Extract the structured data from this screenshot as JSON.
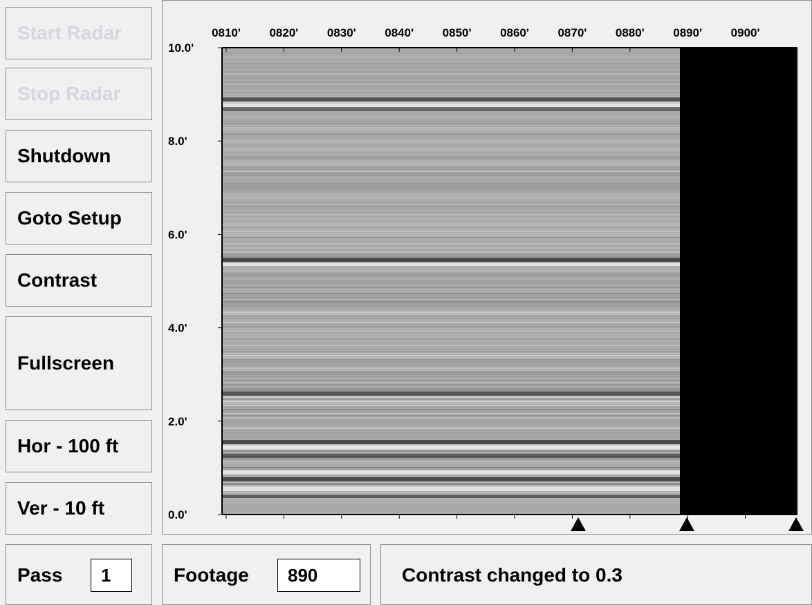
{
  "buttons": [
    {
      "label": "Start Radar",
      "enabled": false
    },
    {
      "label": "Stop Radar",
      "enabled": false
    },
    {
      "label": "Shutdown",
      "enabled": true
    },
    {
      "label": "Goto Setup",
      "enabled": true
    },
    {
      "label": "Contrast",
      "enabled": true
    },
    {
      "label": "Fullscreen",
      "enabled": true
    },
    {
      "label": "Hor - 100 ft",
      "enabled": true
    },
    {
      "label": "Ver - 10 ft",
      "enabled": true
    }
  ],
  "radar": {
    "x_labels": [
      "0810'",
      "0820'",
      "0830'",
      "0840'",
      "0850'",
      "0860'",
      "0870'",
      "0880'",
      "0890'",
      "0900'"
    ],
    "y_labels": [
      "10.0'",
      "8.0'",
      "6.0'",
      "4.0'",
      "2.0'",
      "0.0'"
    ]
  },
  "pass": {
    "label": "Pass",
    "value": "1"
  },
  "footage": {
    "label": "Footage",
    "value": "890"
  },
  "status": {
    "message": "Contrast changed to 0.3"
  }
}
